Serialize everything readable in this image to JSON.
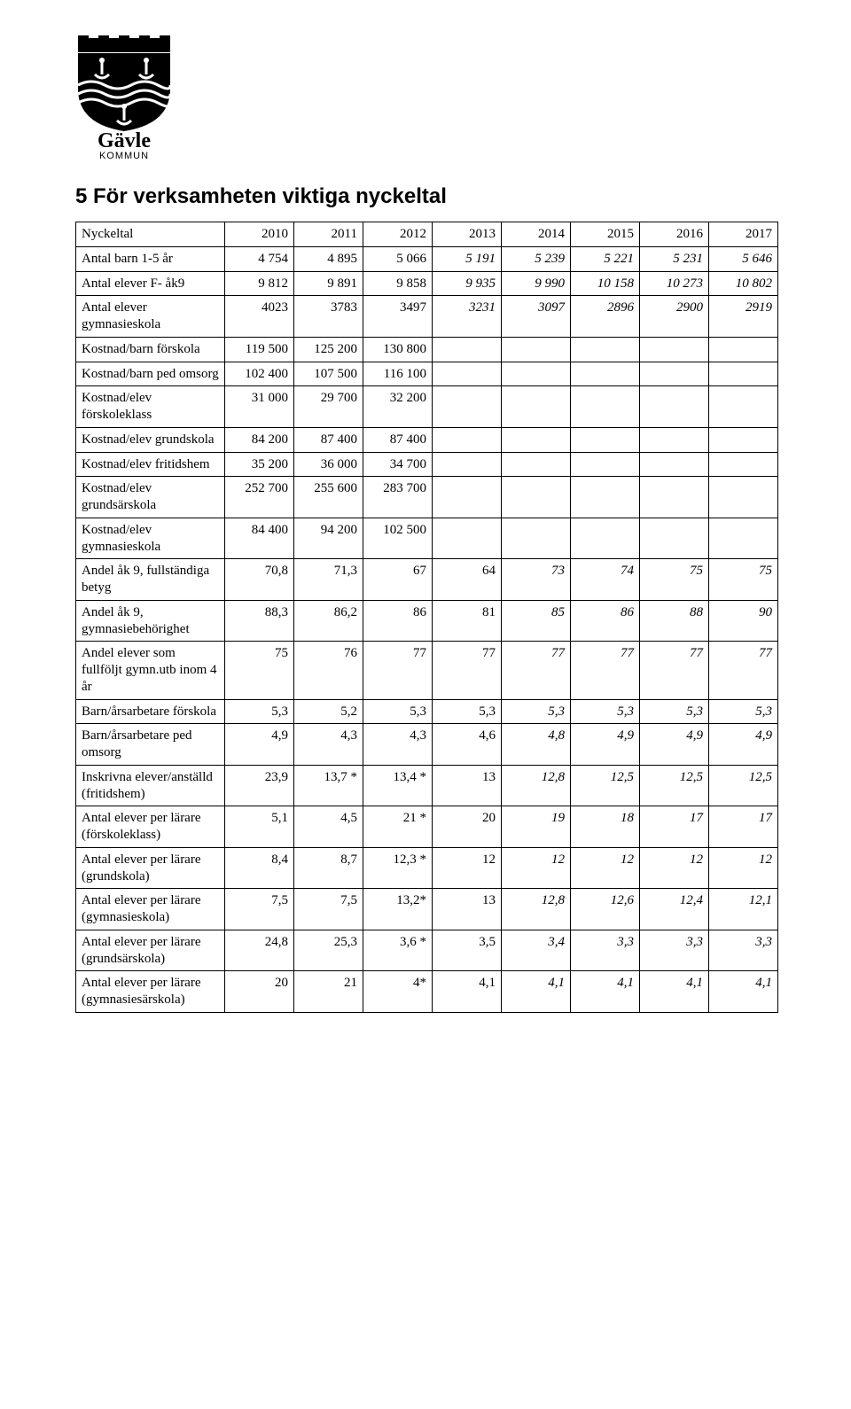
{
  "logo": {
    "text_line1": "Gävle",
    "text_line2": "KOMMUN"
  },
  "heading": "5 För verksamheten viktiga nyckeltal",
  "table": {
    "header_label": "Nyckeltal",
    "years": [
      "2010",
      "2011",
      "2012",
      "2013",
      "2014",
      "2015",
      "2016",
      "2017"
    ],
    "rows": [
      {
        "label": "Antal barn 1-5 år",
        "vals": [
          "4 754",
          "4 895",
          "5 066",
          "5 191",
          "5 239",
          "5 221",
          "5 231",
          "5 646"
        ],
        "italic_from": 3
      },
      {
        "label": "Antal elever F- åk9",
        "vals": [
          "9 812",
          "9 891",
          "9 858",
          "9 935",
          "9 990",
          "10 158",
          "10 273",
          "10 802"
        ],
        "italic_from": 3
      },
      {
        "label": "Antal elever gymnasieskola",
        "vals": [
          "4023",
          "3783",
          "3497",
          "3231",
          "3097",
          "2896",
          "2900",
          "2919"
        ],
        "italic_from": 3
      },
      {
        "label": "Kostnad/barn förskola",
        "vals": [
          "119 500",
          "125 200",
          "130 800",
          "",
          "",
          "",
          "",
          ""
        ],
        "italic_from": 99
      },
      {
        "label": "Kostnad/barn ped omsorg",
        "vals": [
          "102 400",
          "107 500",
          "116 100",
          "",
          "",
          "",
          "",
          ""
        ],
        "italic_from": 99
      },
      {
        "label": "Kostnad/elev förskoleklass",
        "vals": [
          "31 000",
          "29 700",
          "32 200",
          "",
          "",
          "",
          "",
          ""
        ],
        "italic_from": 99
      },
      {
        "label": "Kostnad/elev grundskola",
        "vals": [
          "84 200",
          "87 400",
          "87 400",
          "",
          "",
          "",
          "",
          ""
        ],
        "italic_from": 99
      },
      {
        "label": "Kostnad/elev fritidshem",
        "vals": [
          "35 200",
          "36 000",
          "34 700",
          "",
          "",
          "",
          "",
          ""
        ],
        "italic_from": 99
      },
      {
        "label": "Kostnad/elev grundsärskola",
        "vals": [
          "252 700",
          "255 600",
          "283 700",
          "",
          "",
          "",
          "",
          ""
        ],
        "italic_from": 99
      },
      {
        "label": "Kostnad/elev gymnasieskola",
        "vals": [
          "84 400",
          "94 200",
          "102 500",
          "",
          "",
          "",
          "",
          ""
        ],
        "italic_from": 99
      },
      {
        "label": "Andel åk 9, fullständiga betyg",
        "vals": [
          "70,8",
          "71,3",
          "67",
          "64",
          "73",
          "74",
          "75",
          "75"
        ],
        "italic_from": 4
      },
      {
        "label": "Andel åk 9, gymnasiebehörighet",
        "vals": [
          "88,3",
          "86,2",
          "86",
          "81",
          "85",
          "86",
          "88",
          "90"
        ],
        "italic_from": 4
      },
      {
        "label": "Andel elever som fullföljt gymn.utb inom 4 år",
        "vals": [
          "75",
          "76",
          "77",
          "77",
          "77",
          "77",
          "77",
          "77"
        ],
        "italic_from": 4
      },
      {
        "label": "Barn/årsarbetare förskola",
        "vals": [
          "5,3",
          "5,2",
          "5,3",
          "5,3",
          "5,3",
          "5,3",
          "5,3",
          "5,3"
        ],
        "italic_from": 4
      },
      {
        "label": "Barn/årsarbetare ped omsorg",
        "vals": [
          "4,9",
          "4,3",
          "4,3",
          "4,6",
          "4,8",
          "4,9",
          "4,9",
          "4,9"
        ],
        "italic_from": 4
      },
      {
        "label": "Inskrivna elever/anställd (fritidshem)",
        "vals": [
          "23,9",
          "13,7 *",
          "13,4 *",
          "13",
          "12,8",
          "12,5",
          "12,5",
          "12,5"
        ],
        "italic_from": 4
      },
      {
        "label": "Antal elever per lärare (förskoleklass)",
        "vals": [
          "5,1",
          "4,5",
          "21 *",
          "20",
          "19",
          "18",
          "17",
          "17"
        ],
        "italic_from": 4
      },
      {
        "label": "Antal elever per lärare (grundskola)",
        "vals": [
          "8,4",
          "8,7",
          "12,3 *",
          "12",
          "12",
          "12",
          "12",
          "12"
        ],
        "italic_from": 4
      },
      {
        "label": "Antal elever per lärare (gymnasieskola)",
        "vals": [
          "7,5",
          "7,5",
          "13,2*",
          "13",
          "12,8",
          "12,6",
          "12,4",
          "12,1"
        ],
        "italic_from": 4
      },
      {
        "label": "Antal elever per lärare (grundsärskola)",
        "vals": [
          "24,8",
          "25,3",
          "3,6 *",
          "3,5",
          "3,4",
          "3,3",
          "3,3",
          "3,3"
        ],
        "italic_from": 4
      },
      {
        "label": "Antal elever per lärare (gymnasiesärskola)",
        "vals": [
          "20",
          "21",
          "4*",
          "4,1",
          "4,1",
          "4,1",
          "4,1",
          "4,1"
        ],
        "italic_from": 4
      }
    ]
  }
}
